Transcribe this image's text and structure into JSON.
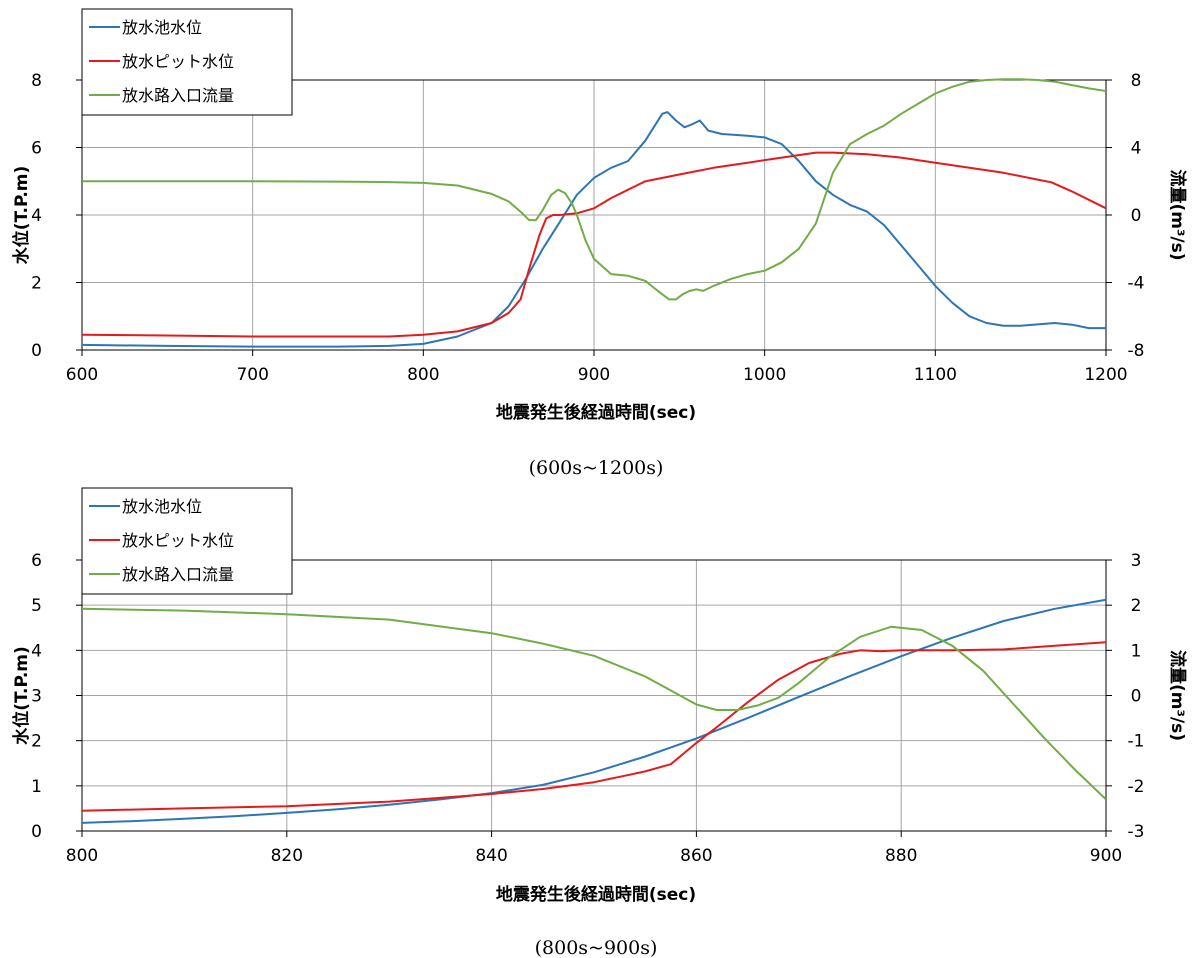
{
  "chart_data": [
    {
      "type": "line",
      "xlabel": "地震発生後経過時間(sec)",
      "ylabel": "水位(T.P.m)",
      "y2label": "流量(m³/s)",
      "caption": "(600s~1200s)",
      "xlim": [
        600,
        1200
      ],
      "ylim": [
        0,
        8
      ],
      "y2lim": [
        -8,
        8
      ],
      "xticks": [
        600,
        700,
        800,
        900,
        1000,
        1100,
        1200
      ],
      "yticks": [
        0,
        2,
        4,
        6,
        8
      ],
      "y2ticks": [
        -8,
        -4,
        0,
        4,
        8
      ],
      "grid": true,
      "legend_position": "top-left",
      "series": [
        {
          "name": "放水池水位",
          "color": "#2e75b6",
          "axis": "left",
          "x": [
            600,
            650,
            700,
            750,
            780,
            800,
            820,
            840,
            850,
            860,
            870,
            880,
            890,
            900,
            910,
            920,
            930,
            935,
            940,
            943,
            948,
            953,
            958,
            962,
            967,
            975,
            990,
            1000,
            1010,
            1020,
            1030,
            1040,
            1050,
            1060,
            1070,
            1080,
            1090,
            1100,
            1110,
            1120,
            1130,
            1140,
            1150,
            1160,
            1170,
            1180,
            1190,
            1200
          ],
          "y": [
            0.15,
            0.12,
            0.1,
            0.1,
            0.12,
            0.18,
            0.4,
            0.8,
            1.3,
            2.1,
            3.0,
            3.8,
            4.6,
            5.1,
            5.4,
            5.6,
            6.2,
            6.6,
            7.0,
            7.05,
            6.8,
            6.6,
            6.7,
            6.8,
            6.5,
            6.4,
            6.35,
            6.3,
            6.1,
            5.6,
            5.0,
            4.6,
            4.3,
            4.1,
            3.7,
            3.1,
            2.5,
            1.9,
            1.4,
            1.0,
            0.8,
            0.72,
            0.72,
            0.76,
            0.8,
            0.75,
            0.65,
            0.65
          ]
        },
        {
          "name": "放水ピット水位",
          "color": "#e41a1c",
          "axis": "left",
          "x": [
            600,
            650,
            700,
            750,
            780,
            800,
            820,
            840,
            850,
            857,
            862,
            868,
            872,
            876,
            880,
            890,
            900,
            910,
            920,
            930,
            935,
            950,
            970,
            990,
            1010,
            1030,
            1040,
            1060,
            1080,
            1100,
            1120,
            1140,
            1160,
            1168,
            1180,
            1190,
            1200
          ],
          "y": [
            0.45,
            0.43,
            0.4,
            0.4,
            0.4,
            0.45,
            0.55,
            0.8,
            1.1,
            1.5,
            2.4,
            3.4,
            3.9,
            4.0,
            4.0,
            4.05,
            4.2,
            4.5,
            4.75,
            5.0,
            5.05,
            5.2,
            5.4,
            5.55,
            5.7,
            5.85,
            5.85,
            5.8,
            5.7,
            5.55,
            5.4,
            5.25,
            5.05,
            4.97,
            4.7,
            4.45,
            4.2
          ]
        },
        {
          "name": "放水路入口流量",
          "color": "#70ad47",
          "axis": "right",
          "x": [
            600,
            650,
            700,
            750,
            780,
            800,
            820,
            840,
            850,
            858,
            862,
            866,
            870,
            875,
            879,
            883,
            887,
            890,
            895,
            900,
            910,
            920,
            930,
            935,
            940,
            944,
            948,
            952,
            956,
            960,
            964,
            970,
            980,
            990,
            1000,
            1010,
            1020,
            1030,
            1040,
            1050,
            1060,
            1070,
            1080,
            1090,
            1100,
            1110,
            1120,
            1130,
            1140,
            1150,
            1160,
            1170,
            1180,
            1190,
            1200
          ],
          "y": [
            2.0,
            2.0,
            2.0,
            1.98,
            1.95,
            1.9,
            1.75,
            1.25,
            0.8,
            0.1,
            -0.3,
            -0.3,
            0.3,
            1.2,
            1.5,
            1.3,
            0.7,
            0.0,
            -1.5,
            -2.6,
            -3.5,
            -3.6,
            -3.9,
            -4.3,
            -4.7,
            -5.0,
            -5.0,
            -4.7,
            -4.5,
            -4.4,
            -4.5,
            -4.2,
            -3.8,
            -3.5,
            -3.3,
            -2.8,
            -2.0,
            -0.5,
            2.5,
            4.2,
            4.8,
            5.3,
            6.0,
            6.6,
            7.2,
            7.6,
            7.9,
            8.0,
            8.05,
            8.05,
            8.0,
            7.9,
            7.7,
            7.5,
            7.35
          ]
        }
      ]
    },
    {
      "type": "line",
      "xlabel": "地震発生後経過時間(sec)",
      "ylabel": "水位(T.P.m)",
      "y2label": "流量(m³/s)",
      "caption": "(800s~900s)",
      "xlim": [
        800,
        900
      ],
      "ylim": [
        0,
        6
      ],
      "y2lim": [
        -3,
        3
      ],
      "xticks": [
        800,
        820,
        840,
        860,
        880,
        900
      ],
      "yticks": [
        0,
        1,
        2,
        3,
        4,
        5,
        6
      ],
      "y2ticks": [
        -3,
        -2,
        -1,
        0,
        1,
        2,
        3
      ],
      "grid": true,
      "legend_position": "top-left",
      "series": [
        {
          "name": "放水池水位",
          "color": "#2e75b6",
          "axis": "left",
          "x": [
            800,
            805,
            810,
            815,
            820,
            825,
            830,
            835,
            840,
            845,
            850,
            855,
            860,
            865,
            870,
            875,
            880,
            885,
            890,
            895,
            900
          ],
          "y": [
            0.18,
            0.22,
            0.27,
            0.33,
            0.4,
            0.48,
            0.58,
            0.7,
            0.84,
            1.02,
            1.3,
            1.65,
            2.05,
            2.5,
            2.97,
            3.43,
            3.87,
            4.28,
            4.65,
            4.92,
            5.12
          ]
        },
        {
          "name": "放水ピット水位",
          "color": "#e41a1c",
          "axis": "left",
          "x": [
            800,
            810,
            820,
            830,
            840,
            845,
            850,
            855,
            857.5,
            860,
            862,
            865,
            868,
            871,
            874,
            876,
            878,
            880,
            885,
            890,
            895,
            900
          ],
          "y": [
            0.45,
            0.5,
            0.55,
            0.65,
            0.82,
            0.93,
            1.08,
            1.32,
            1.48,
            1.95,
            2.3,
            2.85,
            3.35,
            3.72,
            3.92,
            4.0,
            3.98,
            4.0,
            4.0,
            4.02,
            4.1,
            4.18
          ]
        },
        {
          "name": "放水路入口流量",
          "color": "#70ad47",
          "axis": "right",
          "x": [
            800,
            810,
            820,
            830,
            840,
            845,
            850,
            855,
            858,
            860,
            862,
            864,
            866,
            868,
            870,
            873,
            876,
            879,
            882,
            885,
            888,
            891,
            894,
            897,
            900
          ],
          "y": [
            1.92,
            1.88,
            1.8,
            1.68,
            1.38,
            1.15,
            0.88,
            0.42,
            0.05,
            -0.2,
            -0.32,
            -0.32,
            -0.22,
            -0.05,
            0.28,
            0.85,
            1.3,
            1.52,
            1.45,
            1.1,
            0.55,
            -0.2,
            -0.95,
            -1.65,
            -2.3
          ]
        }
      ]
    }
  ]
}
